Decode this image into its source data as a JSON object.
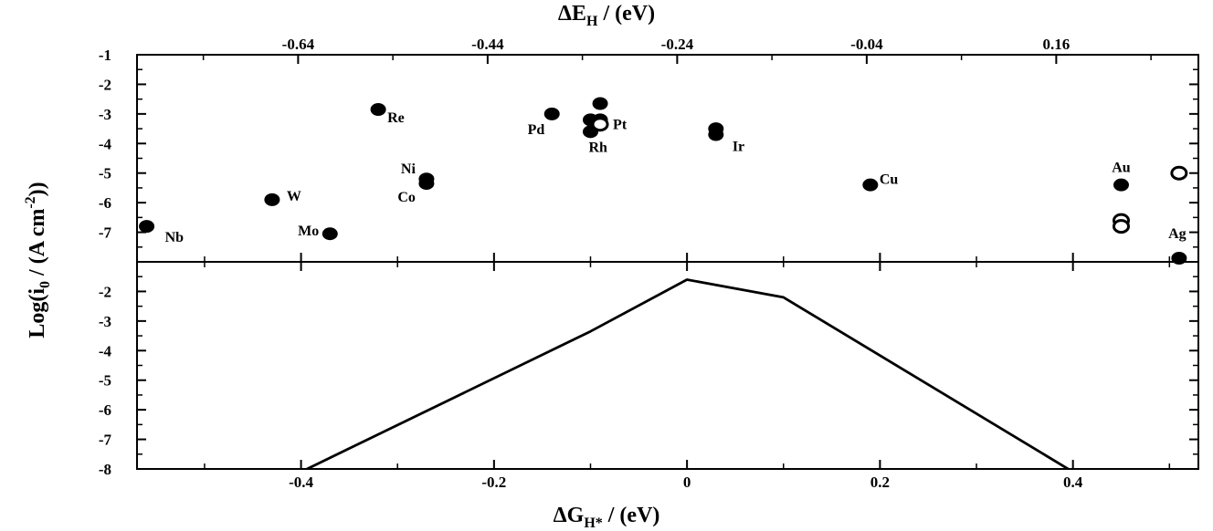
{
  "chart_data": [
    {
      "type": "scatter",
      "panel": "top",
      "top_axis_label": {
        "main": "ΔE",
        "sub": "H",
        "unit": " / (eV)"
      },
      "ylabel": {
        "pre": "Log(i",
        "sub": "0",
        "mid": " / (A cm",
        "sup": "-2",
        "post": "))"
      },
      "xlim_top": [
        -0.81,
        0.31
      ],
      "top_ticks": [
        -0.64,
        -0.44,
        -0.24,
        -0.04,
        0.16
      ],
      "top_tick_labels": [
        "-0.64",
        "-0.44",
        "-0.24",
        "-0.04",
        "0.16"
      ],
      "ylim": [
        -8,
        -1
      ],
      "y_ticks": [
        -1,
        -2,
        -3,
        -4,
        -5,
        -6,
        -7
      ],
      "y_tick_labels": [
        "-1",
        "-2",
        "-3",
        "-4",
        "-5",
        "-6",
        "-7"
      ],
      "x_unit": "ΔG_H* (eV), shared with bottom panel",
      "points": [
        {
          "label": "Nb",
          "x": -0.56,
          "y": -6.8,
          "filled": true
        },
        {
          "label": "W",
          "x": -0.43,
          "y": -5.9,
          "filled": true
        },
        {
          "label": "Mo",
          "x": -0.37,
          "y": -7.05,
          "filled": true
        },
        {
          "label": "Re",
          "x": -0.32,
          "y": -2.85,
          "filled": true
        },
        {
          "label": "Ni",
          "x": -0.27,
          "y": -5.2,
          "filled": true
        },
        {
          "label": "Co",
          "x": -0.27,
          "y": -5.35,
          "filled": true
        },
        {
          "label": "Pd",
          "x": -0.14,
          "y": -3.0,
          "filled": true
        },
        {
          "label": "Rh",
          "x": -0.1,
          "y": -3.6,
          "filled": true
        },
        {
          "label": "",
          "x": -0.1,
          "y": -3.2,
          "filled": true
        },
        {
          "label": "Pt",
          "x": -0.09,
          "y": -3.2,
          "filled": true
        },
        {
          "label": "",
          "x": -0.09,
          "y": -2.65,
          "filled": true
        },
        {
          "label": "",
          "x": -0.09,
          "y": -3.35,
          "filled": false
        },
        {
          "label": "Ir",
          "x": 0.03,
          "y": -3.7,
          "filled": true
        },
        {
          "label": "",
          "x": 0.03,
          "y": -3.5,
          "filled": true
        },
        {
          "label": "Cu",
          "x": 0.19,
          "y": -5.4,
          "filled": true
        },
        {
          "label": "Au",
          "x": 0.45,
          "y": -5.4,
          "filled": true
        },
        {
          "label": "",
          "x": 0.45,
          "y": -6.6,
          "filled": false
        },
        {
          "label": "",
          "x": 0.45,
          "y": -6.8,
          "filled": false
        },
        {
          "label": "",
          "x": 0.51,
          "y": -5.0,
          "filled": false
        },
        {
          "label": "Ag",
          "x": 0.51,
          "y": -7.9,
          "filled": true
        }
      ]
    },
    {
      "type": "line",
      "panel": "bottom",
      "xlabel": {
        "main": "ΔG",
        "sub": "H*",
        "unit": " / (eV)"
      },
      "xlim": [
        -0.57,
        0.53
      ],
      "x_ticks": [
        -0.4,
        -0.2,
        0,
        0.2,
        0.4
      ],
      "x_tick_labels": [
        "-0.4",
        "-0.2",
        "0",
        "0.2",
        "0.4"
      ],
      "ylim": [
        -8,
        -1
      ],
      "y_ticks": [
        -2,
        -3,
        -4,
        -5,
        -6,
        -7,
        -8
      ],
      "y_tick_labels": [
        "-2",
        "-3",
        "-4",
        "-5",
        "-6",
        "-7",
        "-8"
      ],
      "series": [
        {
          "x": [
            -0.4,
            -0.1,
            0,
            0.1,
            0.4
          ],
          "y": [
            -8.1,
            -3.35,
            -1.6,
            -2.2,
            -8.1
          ]
        }
      ]
    }
  ]
}
